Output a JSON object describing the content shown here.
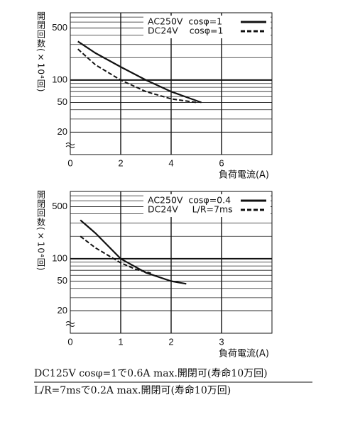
{
  "chart_data": [
    {
      "type": "line",
      "yscale": "log",
      "ylim": [
        10,
        800
      ],
      "yticks": [
        20,
        50,
        100,
        500
      ],
      "minor_yticks": [
        30,
        40,
        60,
        70,
        80,
        90,
        200,
        300,
        400,
        600,
        700
      ],
      "xlim": [
        0,
        8
      ],
      "xticks": [
        0,
        2,
        4,
        6
      ],
      "grid": true,
      "y_label": "開閉回数(×10⁴回)",
      "x_label": "負荷電流(A)",
      "legend": "upper right",
      "series": [
        {
          "name": "AC250V  cosφ=1",
          "color": "#111111",
          "style": "solid",
          "x": [
            0.3,
            1,
            2,
            3,
            4,
            5.2
          ],
          "values": [
            330,
            230,
            150,
            100,
            70,
            50
          ]
        },
        {
          "name": "DC24V    cosφ=1",
          "color": "#111111",
          "style": "dashed",
          "x": [
            0.3,
            1,
            2,
            3,
            4,
            5
          ],
          "values": [
            260,
            160,
            100,
            70,
            56,
            50
          ]
        }
      ]
    },
    {
      "type": "line",
      "yscale": "log",
      "ylim": [
        10,
        800
      ],
      "yticks": [
        20,
        50,
        100,
        500
      ],
      "minor_yticks": [
        30,
        40,
        60,
        70,
        80,
        90,
        200,
        300,
        400,
        600,
        700
      ],
      "xlim": [
        0,
        4
      ],
      "xticks": [
        0,
        1,
        2,
        3
      ],
      "grid": true,
      "y_label": "開閉回数(×10⁴回)",
      "x_label": "負荷電流(A)",
      "legend": "upper right",
      "series": [
        {
          "name": "AC250V  cosφ=0.4",
          "color": "#111111",
          "style": "solid",
          "x": [
            0.2,
            0.5,
            1,
            1.5,
            2,
            2.3
          ],
          "values": [
            330,
            220,
            100,
            65,
            50,
            46
          ]
        },
        {
          "name": "DC24V     L/R=7ms",
          "color": "#111111",
          "style": "dashed",
          "x": [
            0.2,
            0.5,
            1,
            1.3,
            1.6
          ],
          "values": [
            200,
            140,
            88,
            72,
            64
          ]
        }
      ]
    }
  ],
  "notes": [
    "DC125V cosφ=1で0.6A max.開閉可(寿命10万回)",
    "L/R=7msで0.2A max.開閉可(寿命10万回)"
  ]
}
